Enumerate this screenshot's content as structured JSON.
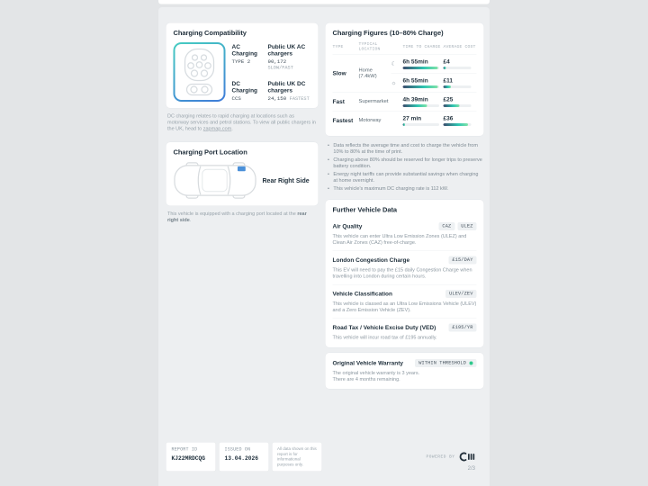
{
  "colors": {
    "page_bg": "#edeff1",
    "outer_bg": "#e3e5e7",
    "bar_gradient_start": "#3c4c6d",
    "bar_gradient_end": "#82e3a8",
    "connector_gradient": [
      "#46c9c2",
      "#3f7fd8"
    ],
    "port_marker_blue": "#4a90d9",
    "status_green": "#2fc98c"
  },
  "charging_compatibility": {
    "title": "Charging Compatibility",
    "ac": {
      "label": "AC Charging",
      "connector": "TYPE 2",
      "public_label": "Public UK AC chargers",
      "count": "90,172",
      "speed": "SLOW/FAST"
    },
    "dc": {
      "label": "DC Charging",
      "connector": "CCS",
      "public_label": "Public UK DC chargers",
      "count": "24,150",
      "speed": "FASTEST"
    },
    "footnote_prefix": "DC charging relates to rapid charging at locations such as motorway services and petrol stations. To view all public chargers in the UK, head to ",
    "footnote_link": "zapmap.com",
    "footnote_end": "."
  },
  "charging_figures": {
    "title": "Charging Figures (10–80% Charge)",
    "col_type": "TYPE",
    "col_location": "TYPICAL LOCATION",
    "col_time": "TIME TO CHARGE",
    "col_cost": "AVERAGE COST",
    "slow": {
      "type": "Slow",
      "location": "Home (7.4kW)",
      "night": {
        "icon": "moon-icon",
        "time": "6h 55min",
        "time_pct": 96,
        "cost": "£4",
        "cost_pct": 10
      },
      "day": {
        "icon": "sun-icon",
        "time": "6h 55min",
        "time_pct": 96,
        "cost": "£11",
        "cost_pct": 28
      }
    },
    "fast": {
      "type": "Fast",
      "location": "Supermarket",
      "time": "4h 39min",
      "time_pct": 67,
      "cost": "£25",
      "cost_pct": 58
    },
    "fastest": {
      "type": "Fastest",
      "location": "Motorway",
      "time": "27 min",
      "time_pct": 6,
      "cost": "£36",
      "cost_pct": 88
    },
    "notes": [
      "Data reflects the average time and cost to charge the vehicle from 10% to 80% at the time of print.",
      "Charging above 80% should be reserved for longer trips to preserve battery condition.",
      "Energy night tariffs can provide substantial savings when charging at home overnight.",
      "This vehicle's maximum DC charging rate is 112 kW."
    ]
  },
  "charging_port": {
    "title": "Charging Port Location",
    "position": "Rear Right Side",
    "footnote_prefix": "This vehicle is equipped with a charging port located at the ",
    "footnote_bold": "rear right side",
    "footnote_end": "."
  },
  "further_vehicle_data": {
    "title": "Further Vehicle Data",
    "sections": [
      {
        "title": "Air Quality",
        "badges": [
          "CAZ",
          "ULEZ"
        ],
        "desc": "This vehicle can enter Ultra Low Emission Zones (ULEZ) and Clean Air Zones (CAZ) free-of-charge."
      },
      {
        "title": "London Congestion Charge",
        "badges": [
          "£15/DAY"
        ],
        "desc": "This EV will need to pay the £15 daily Congestion Charge when travelling into London during certain hours."
      },
      {
        "title": "Vehicle Classification",
        "badges": [
          "ULEV/ZEV"
        ],
        "desc": "This vehicle is classed as an Ultra Low Emissions Vehicle (ULEV) and a Zero Emission Vehicle (ZEV)."
      },
      {
        "title": "Road Tax / Vehicle Excise Duty (VED)",
        "badges": [
          "£195/YR"
        ],
        "desc": "This vehicle will incur road tax of £195 annually."
      }
    ]
  },
  "warranty": {
    "title": "Original Vehicle Warranty",
    "badge": "WITHIN THRESHOLD",
    "desc_line1": "The original vehicle warranty is 3 years.",
    "desc_line2": "There are 4 months remaining."
  },
  "footer": {
    "report_id_label": "REPORT ID",
    "report_id": "KJ22MRDCQG",
    "issued_label": "ISSUED ON",
    "issued": "13.04.2026",
    "disclaimer": "All data shown on this report is for informational purposes only.",
    "powered_by": "POWERED BY",
    "page_number": "2/3"
  }
}
